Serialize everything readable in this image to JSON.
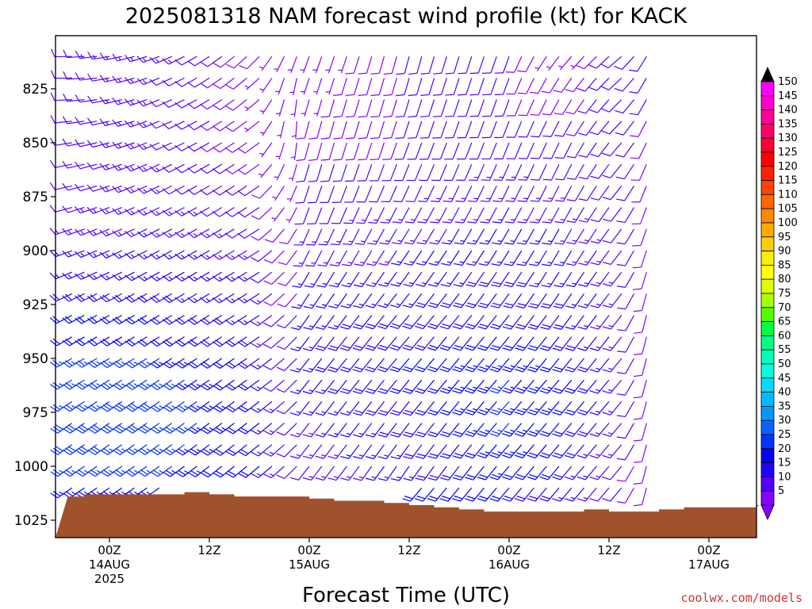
{
  "chart_data": {
    "type": "wind-barb time-height section",
    "title": "2025081318 NAM forecast wind profile (kt) for KACK",
    "xlabel": "Forecast Time (UTC)",
    "ylabel": "",
    "y_scale": "pressure (hPa), reversed",
    "ylim": [
      1030,
      800
    ],
    "y_ticks": [
      825,
      850,
      875,
      900,
      925,
      950,
      975,
      1000,
      1025
    ],
    "xlim_hours": [
      -5,
      65
    ],
    "x_ticks": [
      {
        "hour": 0,
        "line1": "00Z",
        "line2": "14AUG",
        "line3": "2025"
      },
      {
        "hour": 12,
        "line1": "12Z",
        "line2": "",
        "line3": ""
      },
      {
        "hour": 24,
        "line1": "00Z",
        "line2": "15AUG",
        "line3": ""
      },
      {
        "hour": 36,
        "line1": "12Z",
        "line2": "",
        "line3": ""
      },
      {
        "hour": 48,
        "line1": "00Z",
        "line2": "16AUG",
        "line3": ""
      },
      {
        "hour": 60,
        "line1": "12Z",
        "line2": "",
        "line3": ""
      },
      {
        "hour": 72,
        "line1": "00Z",
        "line2": "17AUG",
        "line3": ""
      }
    ],
    "colorbar_levels": [
      150,
      145,
      140,
      135,
      130,
      125,
      120,
      115,
      110,
      105,
      100,
      95,
      90,
      85,
      80,
      75,
      70,
      65,
      60,
      55,
      50,
      45,
      40,
      35,
      30,
      25,
      20,
      15,
      10,
      5
    ],
    "colorbar_colors": [
      "#ff00ff",
      "#ff00cc",
      "#ff0099",
      "#ff0066",
      "#ff0033",
      "#ff0000",
      "#ff2200",
      "#ff4400",
      "#ff6600",
      "#ff8800",
      "#ffaa00",
      "#ffcc00",
      "#ffee00",
      "#ffff00",
      "#ddff00",
      "#aaff00",
      "#55ff00",
      "#00ff44",
      "#00ff88",
      "#00ffbb",
      "#00ffdd",
      "#00ddff",
      "#00bbff",
      "#0099ff",
      "#0066ff",
      "#0033ff",
      "#0000ff",
      "#2200ff",
      "#5500ff",
      "#8800ff"
    ],
    "colorbar_top_cap_color": "#000000",
    "colorbar_bottom_cap_color": "#8800ff",
    "wind_rows_hPa": [
      810,
      820,
      830,
      840,
      850,
      860,
      870,
      880,
      890,
      900,
      910,
      920,
      930,
      940,
      950,
      960,
      970,
      980,
      990,
      1000,
      1010,
      1015
    ],
    "wind_samples": [
      {
        "x_hour": -5,
        "speed": [
          12,
          12,
          12,
          12,
          12,
          12,
          12,
          12,
          14,
          15,
          16,
          18,
          20,
          22,
          25,
          26,
          27,
          28,
          28,
          26,
          24,
          null
        ],
        "dir": [
          270,
          270,
          268,
          265,
          262,
          260,
          258,
          255,
          252,
          250,
          248,
          245,
          243,
          240,
          240,
          238,
          236,
          235,
          235,
          235,
          235,
          null
        ]
      },
      {
        "x_hour": 6,
        "speed": [
          14,
          13,
          13,
          13,
          13,
          13,
          13,
          14,
          15,
          16,
          17,
          18,
          20,
          22,
          25,
          27,
          28,
          28,
          27,
          26,
          null,
          null
        ],
        "dir": [
          250,
          248,
          248,
          248,
          247,
          245,
          244,
          243,
          242,
          241,
          240,
          240,
          239,
          238,
          237,
          236,
          235,
          235,
          235,
          235,
          null,
          null
        ]
      },
      {
        "x_hour": 18,
        "speed": [
          8,
          7,
          7,
          7,
          8,
          9,
          10,
          11,
          12,
          14,
          15,
          16,
          17,
          18,
          19,
          20,
          21,
          21,
          20,
          20,
          null,
          8
        ],
        "dir": [
          225,
          228,
          230,
          232,
          234,
          235,
          236,
          237,
          238,
          238,
          238,
          238,
          237,
          236,
          235,
          234,
          233,
          232,
          231,
          230,
          null,
          230
        ]
      },
      {
        "x_hour": 22,
        "speed": [
          3,
          3,
          3,
          3,
          4,
          4,
          5,
          5,
          6,
          6,
          7,
          7,
          8,
          8,
          9,
          9,
          10,
          10,
          10,
          10,
          null,
          null
        ],
        "dir": [
          200,
          190,
          185,
          180,
          185,
          195,
          205,
          210,
          215,
          220,
          222,
          224,
          226,
          227,
          228,
          228,
          228,
          228,
          228,
          228,
          null,
          null
        ]
      },
      {
        "x_hour": 24,
        "speed": [
          5,
          6,
          7,
          8,
          9,
          10,
          11,
          12,
          13,
          14,
          15,
          16,
          17,
          17,
          17,
          16,
          15,
          14,
          13,
          12,
          null,
          null
        ],
        "dir": [
          200,
          198,
          196,
          195,
          195,
          196,
          198,
          200,
          203,
          206,
          210,
          213,
          215,
          217,
          218,
          218,
          218,
          218,
          218,
          218,
          null,
          null
        ]
      },
      {
        "x_hour": 36,
        "speed": [
          10,
          10,
          10,
          10,
          10,
          11,
          12,
          13,
          14,
          15,
          16,
          17,
          18,
          19,
          20,
          20,
          19,
          18,
          17,
          16,
          null,
          null
        ],
        "dir": [
          195,
          196,
          197,
          198,
          200,
          202,
          205,
          208,
          211,
          214,
          216,
          218,
          220,
          220,
          220,
          219,
          218,
          217,
          216,
          215,
          null,
          null
        ]
      },
      {
        "x_hour": 48,
        "speed": [
          10,
          10,
          10,
          11,
          12,
          13,
          14,
          15,
          16,
          17,
          18,
          19,
          20,
          22,
          24,
          25,
          25,
          25,
          24,
          23,
          20,
          null
        ],
        "dir": [
          200,
          200,
          200,
          201,
          202,
          204,
          206,
          208,
          210,
          212,
          214,
          216,
          218,
          219,
          220,
          221,
          221,
          221,
          221,
          220,
          220,
          null
        ]
      },
      {
        "x_hour": 55,
        "speed": [
          5,
          8,
          9,
          10,
          11,
          12,
          13,
          14,
          15,
          16,
          17,
          18,
          19,
          20,
          22,
          23,
          23,
          22,
          21,
          20,
          18,
          null
        ],
        "dir": [
          220,
          214,
          210,
          208,
          206,
          206,
          207,
          208,
          209,
          210,
          212,
          214,
          216,
          218,
          219,
          220,
          220,
          220,
          220,
          220,
          220,
          null
        ]
      },
      {
        "x_hour": 62,
        "speed": [
          13,
          12,
          12,
          11,
          11,
          11,
          11,
          11,
          12,
          12,
          13,
          13,
          13,
          13,
          14,
          14,
          14,
          13,
          12,
          11,
          10,
          null
        ],
        "dir": [
          230,
          228,
          226,
          224,
          222,
          220,
          219,
          218,
          218,
          218,
          218,
          218,
          218,
          218,
          219,
          220,
          220,
          220,
          220,
          220,
          220,
          null
        ]
      },
      {
        "x_hour": 66,
        "speed": [
          10,
          10,
          9,
          9,
          9,
          9,
          8,
          8,
          7,
          7,
          6,
          6,
          5,
          5,
          5,
          5,
          6,
          6,
          6,
          6,
          6,
          null
        ],
        "dir": [
          200,
          200,
          200,
          198,
          196,
          194,
          192,
          190,
          188,
          186,
          184,
          182,
          180,
          180,
          180,
          180,
          180,
          180,
          180,
          180,
          180,
          null
        ]
      }
    ],
    "terrain_surface_hPa": [
      {
        "x_hour": -5,
        "p": 1014
      },
      {
        "x_hour": -3,
        "p": 1013
      },
      {
        "x_hour": 0,
        "p": 1013
      },
      {
        "x_hour": 3,
        "p": 1013
      },
      {
        "x_hour": 6,
        "p": 1013
      },
      {
        "x_hour": 9,
        "p": 1012
      },
      {
        "x_hour": 12,
        "p": 1013
      },
      {
        "x_hour": 15,
        "p": 1014
      },
      {
        "x_hour": 18,
        "p": 1014
      },
      {
        "x_hour": 21,
        "p": 1014
      },
      {
        "x_hour": 24,
        "p": 1015
      },
      {
        "x_hour": 27,
        "p": 1016
      },
      {
        "x_hour": 30,
        "p": 1016
      },
      {
        "x_hour": 33,
        "p": 1017
      },
      {
        "x_hour": 36,
        "p": 1018
      },
      {
        "x_hour": 39,
        "p": 1019
      },
      {
        "x_hour": 42,
        "p": 1020
      },
      {
        "x_hour": 45,
        "p": 1021
      },
      {
        "x_hour": 48,
        "p": 1021
      },
      {
        "x_hour": 51,
        "p": 1021
      },
      {
        "x_hour": 54,
        "p": 1021
      },
      {
        "x_hour": 57,
        "p": 1020
      },
      {
        "x_hour": 60,
        "p": 1021
      },
      {
        "x_hour": 63,
        "p": 1021
      },
      {
        "x_hour": 66,
        "p": 1020
      },
      {
        "x_hour": 69,
        "p": 1019
      },
      {
        "x_hour": 72,
        "p": 1019
      },
      {
        "x_hour": 75,
        "p": 1019
      },
      {
        "x_hour": 78,
        "p": 1018
      }
    ],
    "terrain_color": "#a0522d",
    "legend": "colorbar, right"
  },
  "credit": "coolwx.com/models"
}
